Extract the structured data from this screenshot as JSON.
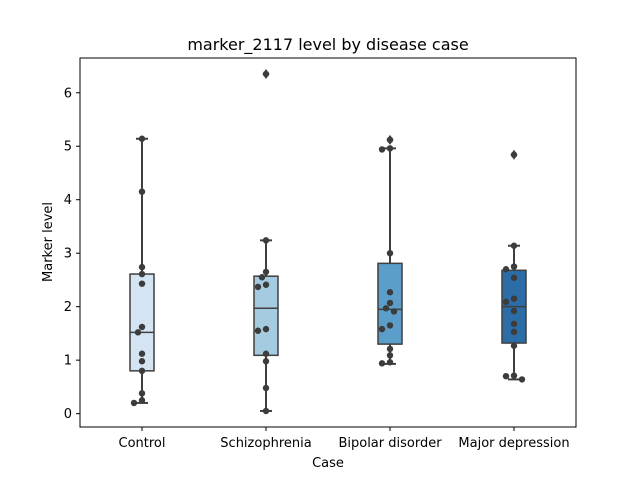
{
  "chart_data": {
    "type": "box",
    "title": "marker_2117 level by disease case",
    "xlabel": "Case",
    "ylabel": "Marker level",
    "ylim": [
      -0.25,
      6.65
    ],
    "yticks": [
      0,
      1,
      2,
      3,
      4,
      5,
      6
    ],
    "categories": [
      "Control",
      "Schizophrenia",
      "Bipolar disorder",
      "Major depression"
    ],
    "boxes": [
      {
        "category": "Control",
        "whisker_low": 0.2,
        "q1": 0.8,
        "median": 1.52,
        "q3": 2.61,
        "whisker_high": 5.14,
        "outliers": [],
        "color": "#d4e4f2"
      },
      {
        "category": "Schizophrenia",
        "whisker_low": 0.05,
        "q1": 1.09,
        "median": 1.97,
        "q3": 2.57,
        "whisker_high": 3.24,
        "outliers": [
          6.35
        ],
        "color": "#a5cbe1"
      },
      {
        "category": "Bipolar disorder",
        "whisker_low": 0.93,
        "q1": 1.3,
        "median": 1.95,
        "q3": 2.81,
        "whisker_high": 4.96,
        "outliers": [
          5.12
        ],
        "color": "#5b9ec9"
      },
      {
        "category": "Major depression",
        "whisker_low": 0.64,
        "q1": 1.32,
        "median": 2.0,
        "q3": 2.68,
        "whisker_high": 3.14,
        "outliers": [
          4.84
        ],
        "color": "#2c6da8"
      }
    ],
    "points": [
      {
        "category": "Control",
        "values": [
          5.14,
          4.15,
          2.74,
          2.61,
          2.43,
          1.62,
          1.52,
          1.12,
          0.98,
          0.8,
          0.38,
          0.25,
          0.2
        ]
      },
      {
        "category": "Schizophrenia",
        "values": [
          6.35,
          3.24,
          2.65,
          2.55,
          2.41,
          2.37,
          1.58,
          1.55,
          1.12,
          0.98,
          0.48,
          0.05
        ]
      },
      {
        "category": "Bipolar disorder",
        "values": [
          5.12,
          4.96,
          4.94,
          3.0,
          2.27,
          2.07,
          1.97,
          1.91,
          1.65,
          1.58,
          1.21,
          1.09,
          0.96,
          0.94
        ]
      },
      {
        "category": "Major depression",
        "values": [
          4.84,
          3.14,
          2.75,
          2.7,
          2.54,
          2.15,
          2.09,
          1.92,
          1.68,
          1.53,
          1.27,
          0.71,
          0.7,
          0.64
        ]
      }
    ],
    "grid": false,
    "legend": "none",
    "point_color": "#3c3c3c",
    "edge_color": "#3f3f3f"
  }
}
